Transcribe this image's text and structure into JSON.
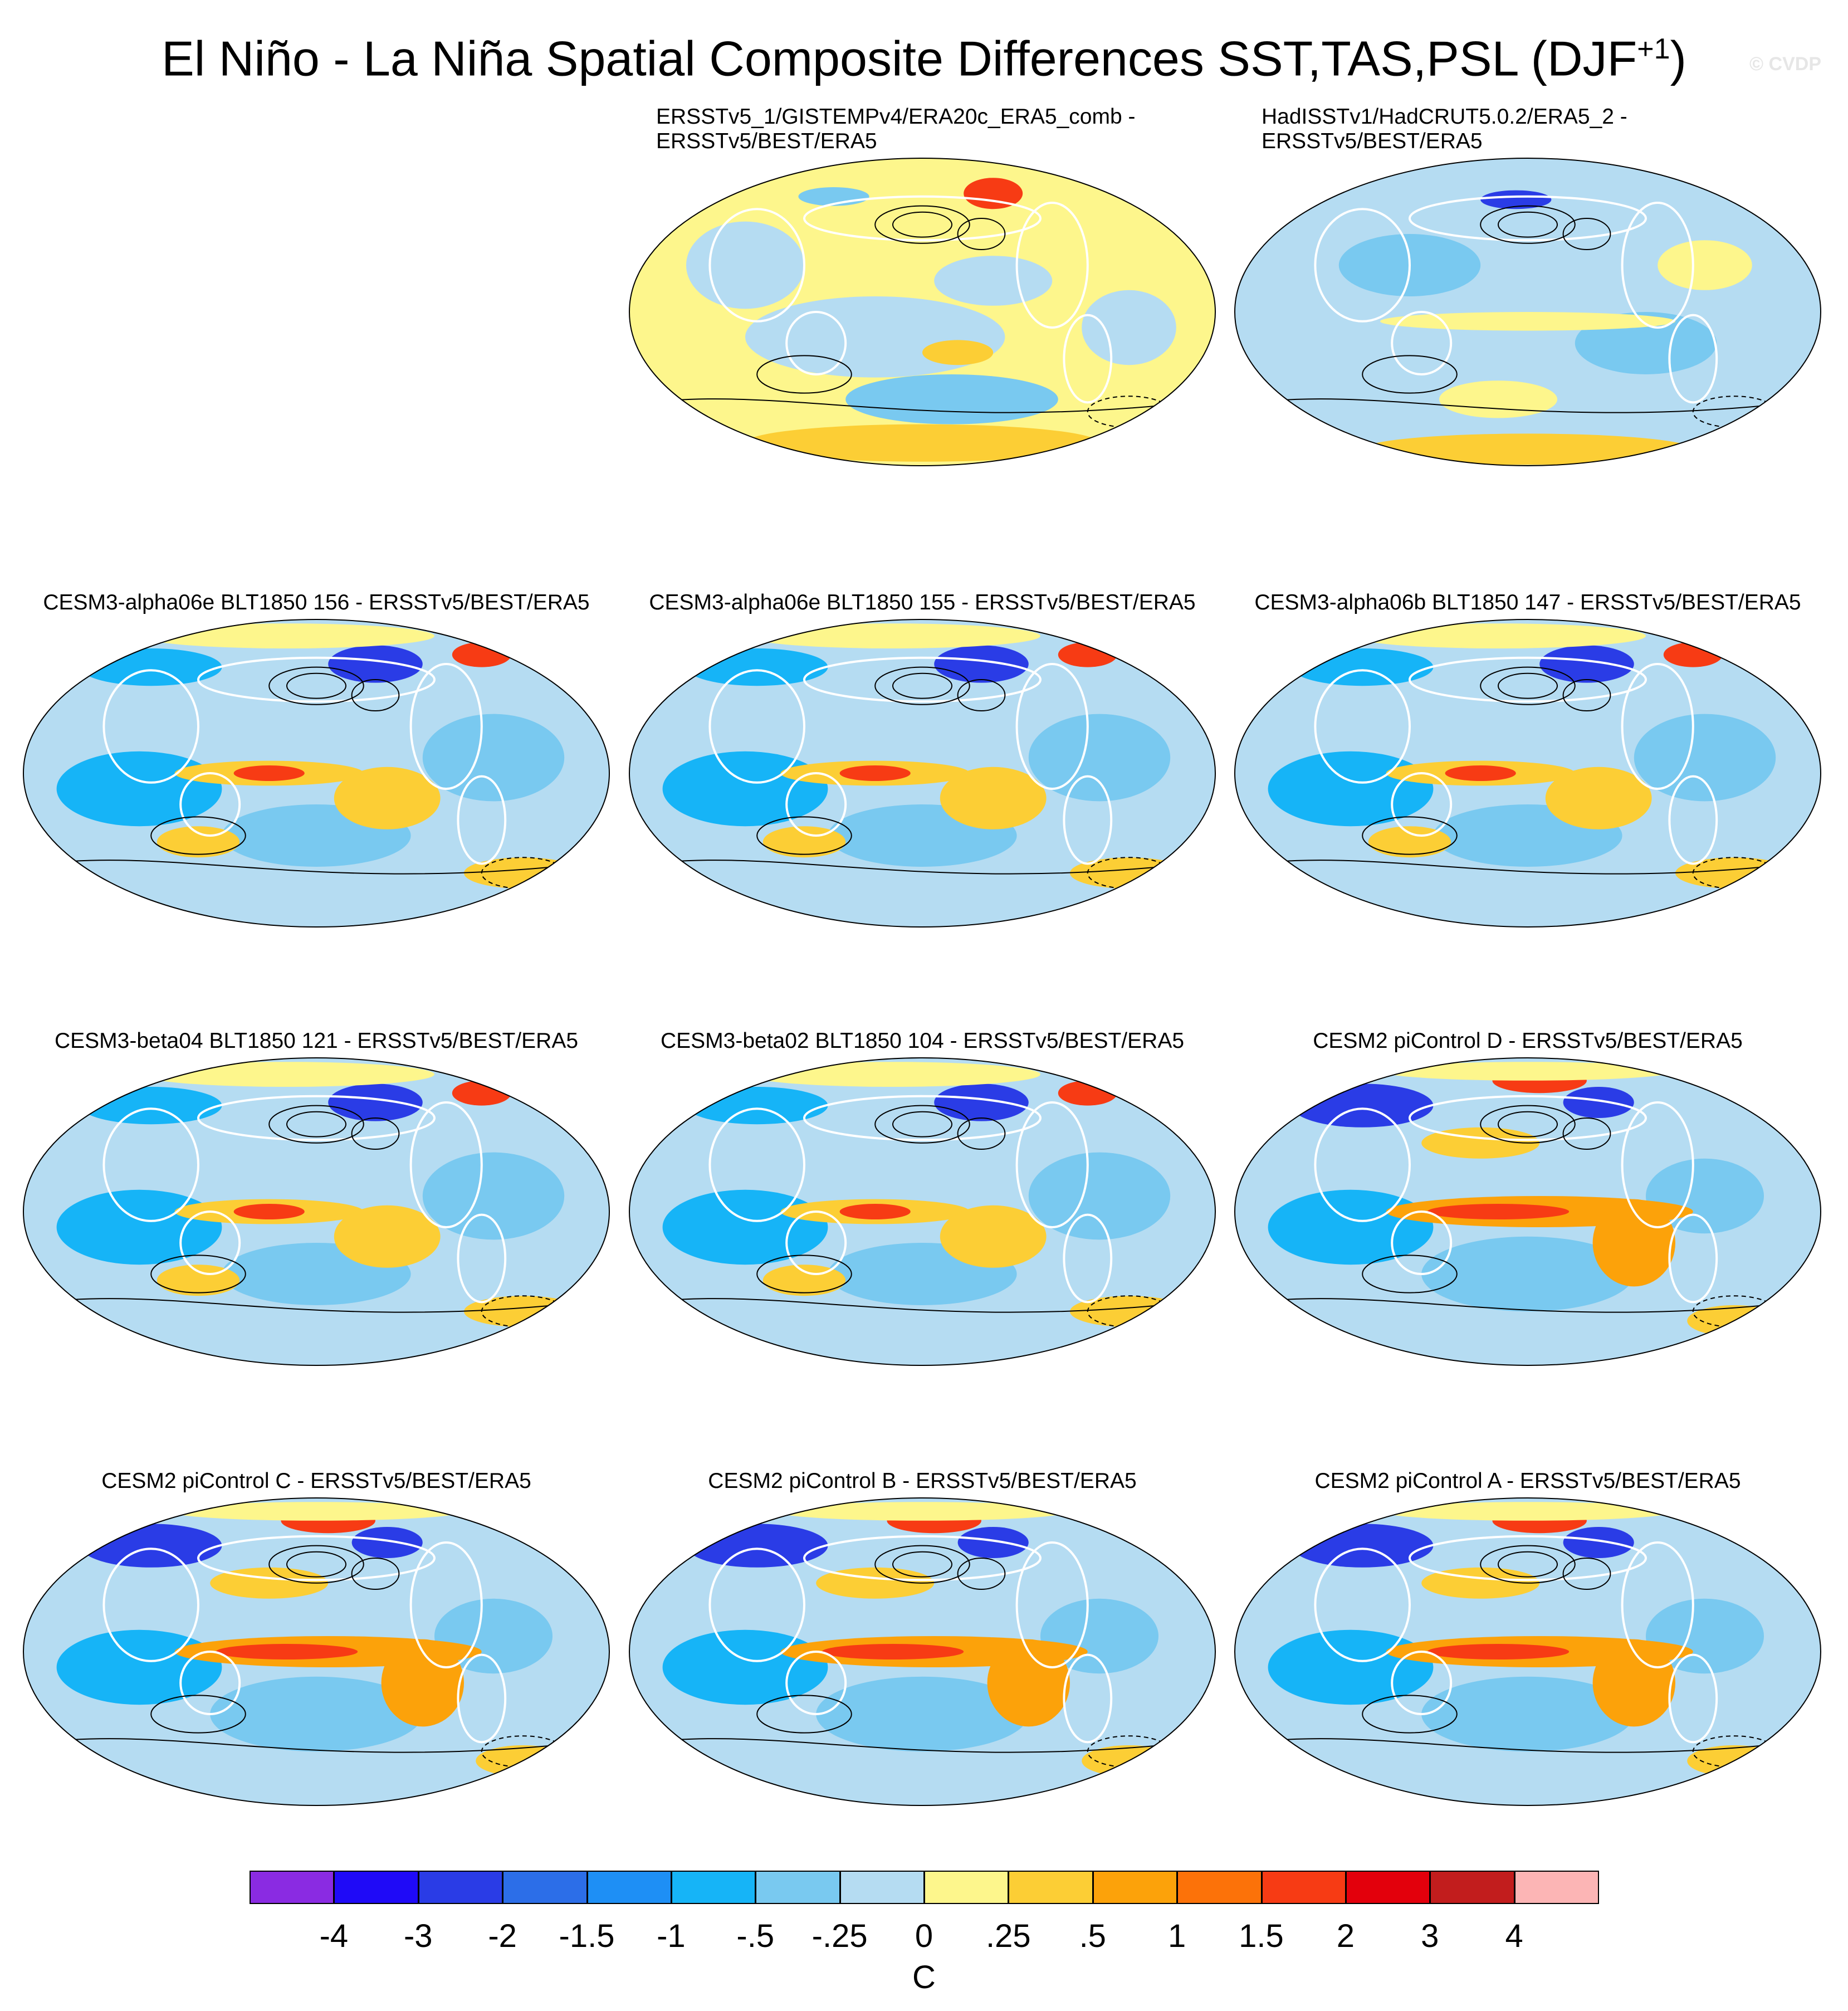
{
  "title": {
    "main": "El Niño - La Niña Spatial Composite Differences SST,TAS,PSL (DJF",
    "superscript": "+1",
    "closing": ")"
  },
  "watermark": "© CVDP",
  "panels": [
    {
      "row": 0,
      "col": 1,
      "title_lines": [
        "ERSSTv5_1/GISTEMPv4/ERA20c_ERA5_comb -",
        "ERSSTv5/BEST/ERA5"
      ],
      "pattern": "obs1"
    },
    {
      "row": 0,
      "col": 2,
      "title_lines": [
        "HadISSTv1/HadCRUT5.0.2/ERA5_2 -",
        "ERSSTv5/BEST/ERA5"
      ],
      "pattern": "obs2"
    },
    {
      "row": 1,
      "col": 0,
      "title_lines": [
        "CESM3-alpha06e BLT1850 156 - ERSSTv5/BEST/ERA5"
      ],
      "pattern": "weak"
    },
    {
      "row": 1,
      "col": 1,
      "title_lines": [
        "CESM3-alpha06e BLT1850 155 - ERSSTv5/BEST/ERA5"
      ],
      "pattern": "weak"
    },
    {
      "row": 1,
      "col": 2,
      "title_lines": [
        "CESM3-alpha06b BLT1850 147 - ERSSTv5/BEST/ERA5"
      ],
      "pattern": "weak"
    },
    {
      "row": 2,
      "col": 0,
      "title_lines": [
        "CESM3-beta04 BLT1850 121 - ERSSTv5/BEST/ERA5"
      ],
      "pattern": "weak"
    },
    {
      "row": 2,
      "col": 1,
      "title_lines": [
        "CESM3-beta02 BLT1850 104 - ERSSTv5/BEST/ERA5"
      ],
      "pattern": "weak"
    },
    {
      "row": 2,
      "col": 2,
      "title_lines": [
        "CESM2 piControl D - ERSSTv5/BEST/ERA5"
      ],
      "pattern": "strong"
    },
    {
      "row": 3,
      "col": 0,
      "title_lines": [
        "CESM2 piControl C - ERSSTv5/BEST/ERA5"
      ],
      "pattern": "strong"
    },
    {
      "row": 3,
      "col": 1,
      "title_lines": [
        "CESM2 piControl B - ERSSTv5/BEST/ERA5"
      ],
      "pattern": "strong"
    },
    {
      "row": 3,
      "col": 2,
      "title_lines": [
        "CESM2 piControl A - ERSSTv5/BEST/ERA5"
      ],
      "pattern": "strong"
    }
  ],
  "colorbar": {
    "units": "C",
    "labels": [
      "-4",
      "-3",
      "-2",
      "-1.5",
      "-1",
      "-.5",
      "-.25",
      "0",
      ".25",
      ".5",
      "1",
      "1.5",
      "2",
      "3",
      "4"
    ],
    "colors": [
      "#8a2be2",
      "#1f0af7",
      "#2a3ce6",
      "#2c6ee8",
      "#1e8ff5",
      "#16b4f7",
      "#79c9f0",
      "#b5dcf2",
      "#fdf68c",
      "#fcce35",
      "#fca20a",
      "#fc7209",
      "#f73b14",
      "#e3000c",
      "#c21d1d",
      "#fcb5b5"
    ]
  },
  "field_colors": {
    "light_blue": "#b5dcf2",
    "mid_blue": "#79c9f0",
    "blue": "#16b4f7",
    "deep_blue": "#2a3ce6",
    "light_yellow": "#fdf68c",
    "yellow": "#fcce35",
    "orange": "#fca20a",
    "red": "#f73b14",
    "dark_red": "#c21d1d"
  }
}
